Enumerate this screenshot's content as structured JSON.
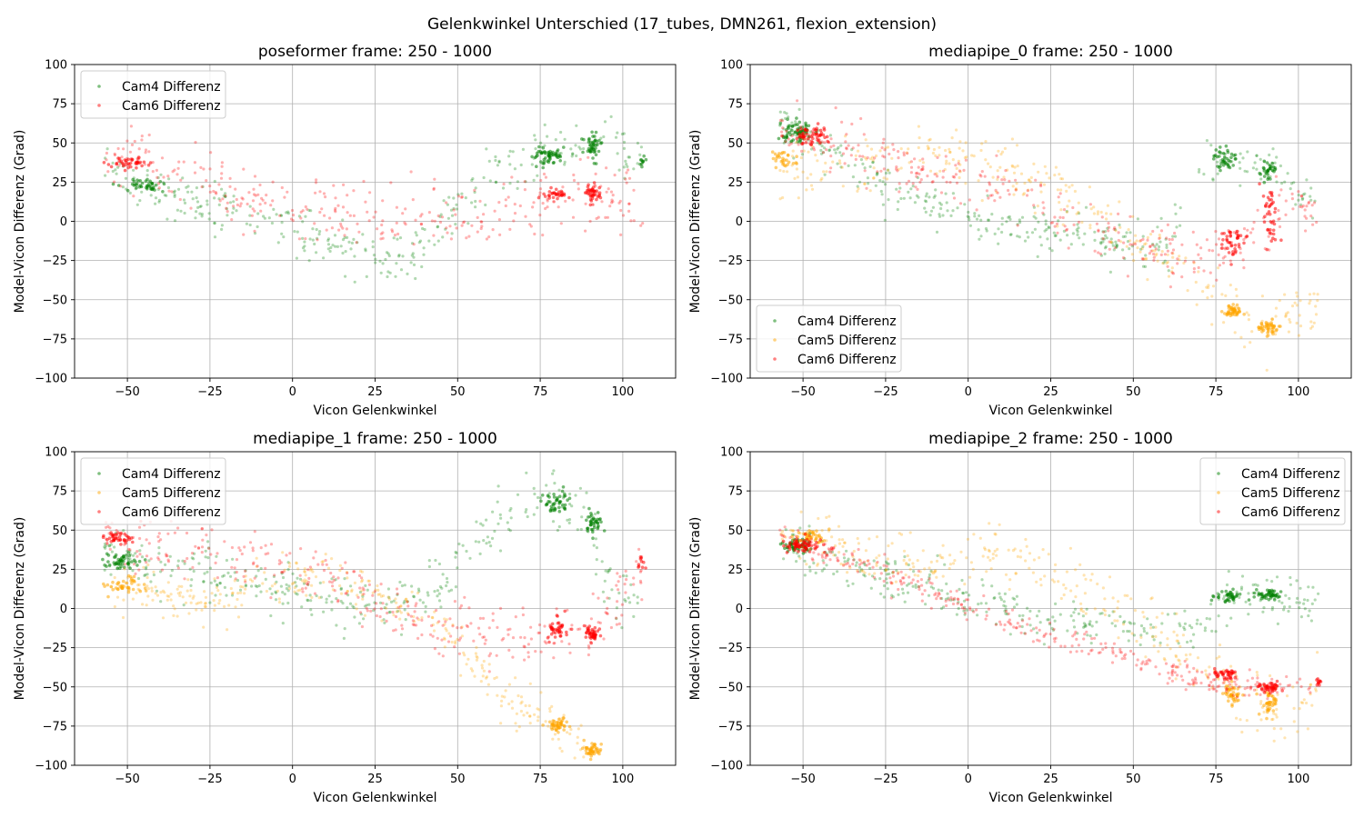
{
  "figure": {
    "suptitle": "Gelenkwinkel Unterschied (17_tubes, DMN261, flexion_extension)"
  },
  "colors": {
    "Cam4 Differenz": "#008000",
    "Cam5 Differenz": "#ffa500",
    "Cam6 Differenz": "#ff0000",
    "grid": "#b0b0b0",
    "axes": "#000000"
  },
  "chart_data": [
    {
      "type": "scatter",
      "title": "poseformer frame: 250 - 1000",
      "xlabel": "Vicon Gelenkwinkel",
      "ylabel": "Model-Vicon Differenz (Grad)",
      "xlim": [
        -66,
        116
      ],
      "ylim": [
        -100,
        100
      ],
      "xticks": [
        -50,
        -25,
        0,
        25,
        50,
        75,
        100
      ],
      "yticks": [
        -100,
        -75,
        -50,
        -25,
        0,
        25,
        50,
        75,
        100
      ],
      "grid": true,
      "legend_position": "upper left",
      "series": [
        {
          "name": "Cam4 Differenz",
          "trend": [
            [
              -57,
              35
            ],
            [
              -48,
              23
            ],
            [
              -30,
              12
            ],
            [
              -15,
              4
            ],
            [
              0,
              -5
            ],
            [
              15,
              -15
            ],
            [
              25,
              -23
            ],
            [
              35,
              -25
            ],
            [
              50,
              10
            ],
            [
              60,
              30
            ],
            [
              75,
              42
            ],
            [
              85,
              45
            ],
            [
              95,
              55
            ],
            [
              106,
              38
            ]
          ],
          "noise": 8,
          "count": 330,
          "clusters": [
            [
              77,
              42,
              4,
              5,
              55
            ],
            [
              91,
              47,
              2,
              8,
              45
            ],
            [
              -45,
              23,
              5,
              3,
              40
            ],
            [
              106,
              38,
              1,
              3,
              10
            ]
          ]
        },
        {
          "name": "Cam6 Differenz",
          "trend": [
            [
              -57,
              45
            ],
            [
              -45,
              40
            ],
            [
              -30,
              26
            ],
            [
              -15,
              15
            ],
            [
              0,
              8
            ],
            [
              15,
              5
            ],
            [
              30,
              3
            ],
            [
              45,
              0
            ],
            [
              60,
              5
            ],
            [
              75,
              12
            ],
            [
              90,
              18
            ],
            [
              106,
              10
            ]
          ],
          "noise": 10,
          "count": 330,
          "clusters": [
            [
              -50,
              37,
              5,
              3,
              40
            ],
            [
              80,
              17,
              3,
              3,
              30
            ],
            [
              91,
              18,
              2,
              4,
              40
            ]
          ]
        }
      ]
    },
    {
      "type": "scatter",
      "title": "mediapipe_0 frame: 250 - 1000",
      "xlabel": "Vicon Gelenkwinkel",
      "ylabel": "Model-Vicon Differenz (Grad)",
      "xlim": [
        -66,
        116
      ],
      "ylim": [
        -100,
        100
      ],
      "xticks": [
        -50,
        -25,
        0,
        25,
        50,
        75,
        100
      ],
      "yticks": [
        -100,
        -75,
        -50,
        -25,
        0,
        25,
        50,
        75,
        100
      ],
      "grid": true,
      "legend_position": "lower left",
      "series": [
        {
          "name": "Cam4 Differenz",
          "trend": [
            [
              -57,
              63
            ],
            [
              -45,
              50
            ],
            [
              -25,
              25
            ],
            [
              -10,
              10
            ],
            [
              0,
              2
            ],
            [
              20,
              -5
            ],
            [
              40,
              -10
            ],
            [
              60,
              -18
            ],
            [
              70,
              35
            ],
            [
              80,
              40
            ],
            [
              92,
              35
            ],
            [
              106,
              12
            ]
          ],
          "noise": 8,
          "count": 340,
          "clusters": [
            [
              -52,
              57,
              4,
              5,
              60
            ],
            [
              78,
              40,
              3,
              7,
              40
            ],
            [
              91,
              32,
              2,
              6,
              30
            ]
          ]
        },
        {
          "name": "Cam5 Differenz",
          "trend": [
            [
              -57,
              25
            ],
            [
              -45,
              35
            ],
            [
              -25,
              40
            ],
            [
              -10,
              45
            ],
            [
              0,
              40
            ],
            [
              15,
              30
            ],
            [
              30,
              15
            ],
            [
              50,
              -10
            ],
            [
              65,
              -30
            ],
            [
              78,
              -55
            ],
            [
              90,
              -68
            ],
            [
              106,
              -55
            ]
          ],
          "noise": 9,
          "count": 320,
          "clusters": [
            [
              -55,
              40,
              3,
              6,
              30
            ],
            [
              80,
              -57,
              3,
              3,
              45
            ],
            [
              91,
              -68,
              3,
              4,
              45
            ]
          ]
        },
        {
          "name": "Cam6 Differenz",
          "trend": [
            [
              -57,
              62
            ],
            [
              -45,
              52
            ],
            [
              -25,
              38
            ],
            [
              0,
              28
            ],
            [
              20,
              15
            ],
            [
              40,
              -5
            ],
            [
              55,
              -15
            ],
            [
              70,
              -25
            ],
            [
              80,
              -15
            ],
            [
              90,
              -10
            ],
            [
              95,
              12
            ],
            [
              106,
              8
            ]
          ],
          "noise": 9,
          "count": 330,
          "clusters": [
            [
              -48,
              55,
              5,
              5,
              55
            ],
            [
              80,
              -12,
              3,
              7,
              40
            ],
            [
              91,
              5,
              2,
              20,
              40
            ]
          ]
        }
      ]
    },
    {
      "type": "scatter",
      "title": "mediapipe_1 frame: 250 - 1000",
      "xlabel": "Vicon Gelenkwinkel",
      "ylabel": "Model-Vicon Differenz (Grad)",
      "xlim": [
        -66,
        116
      ],
      "ylim": [
        -100,
        100
      ],
      "xticks": [
        -50,
        -25,
        0,
        25,
        50,
        75,
        100
      ],
      "yticks": [
        -100,
        -75,
        -50,
        -25,
        0,
        25,
        50,
        75,
        100
      ],
      "grid": true,
      "legend_position": "upper left",
      "series": [
        {
          "name": "Cam4 Differenz",
          "trend": [
            [
              -57,
              38
            ],
            [
              -45,
              28
            ],
            [
              -25,
              20
            ],
            [
              0,
              12
            ],
            [
              15,
              5
            ],
            [
              30,
              0
            ],
            [
              45,
              15
            ],
            [
              55,
              40
            ],
            [
              65,
              60
            ],
            [
              78,
              72
            ],
            [
              90,
              55
            ],
            [
              95,
              15
            ],
            [
              106,
              -5
            ]
          ],
          "noise": 9,
          "count": 340,
          "clusters": [
            [
              -52,
              30,
              4,
              4,
              50
            ],
            [
              80,
              68,
              3,
              6,
              45
            ],
            [
              91,
              55,
              2,
              6,
              40
            ]
          ]
        },
        {
          "name": "Cam5 Differenz",
          "trend": [
            [
              -57,
              15
            ],
            [
              -45,
              10
            ],
            [
              -25,
              5
            ],
            [
              0,
              20
            ],
            [
              15,
              20
            ],
            [
              30,
              5
            ],
            [
              45,
              -10
            ],
            [
              55,
              -35
            ],
            [
              65,
              -55
            ],
            [
              78,
              -72
            ],
            [
              90,
              -90
            ]
          ],
          "noise": 8,
          "count": 320,
          "clusters": [
            [
              -50,
              14,
              5,
              4,
              40
            ],
            [
              80,
              -74,
              3,
              4,
              45
            ],
            [
              91,
              -90,
              2,
              4,
              45
            ]
          ]
        },
        {
          "name": "Cam6 Differenz",
          "trend": [
            [
              -57,
              48
            ],
            [
              -45,
              40
            ],
            [
              -25,
              35
            ],
            [
              0,
              28
            ],
            [
              15,
              15
            ],
            [
              30,
              0
            ],
            [
              45,
              -10
            ],
            [
              60,
              -15
            ],
            [
              75,
              -18
            ],
            [
              90,
              -18
            ],
            [
              95,
              0
            ],
            [
              106,
              25
            ]
          ],
          "noise": 9,
          "count": 330,
          "clusters": [
            [
              -52,
              45,
              3,
              3,
              40
            ],
            [
              80,
              -12,
              3,
              6,
              40
            ],
            [
              91,
              -16,
              2,
              4,
              45
            ],
            [
              106,
              27,
              1,
              4,
              10
            ]
          ]
        }
      ]
    },
    {
      "type": "scatter",
      "title": "mediapipe_2 frame: 250 - 1000",
      "xlabel": "Vicon Gelenkwinkel",
      "ylabel": "Model-Vicon Differenz (Grad)",
      "xlim": [
        -66,
        116
      ],
      "ylim": [
        -100,
        100
      ],
      "xticks": [
        -50,
        -25,
        0,
        25,
        50,
        75,
        100
      ],
      "yticks": [
        -100,
        -75,
        -50,
        -25,
        0,
        25,
        50,
        75,
        100
      ],
      "grid": true,
      "legend_position": "upper right",
      "series": [
        {
          "name": "Cam4 Differenz",
          "trend": [
            [
              -57,
              42
            ],
            [
              -45,
              35
            ],
            [
              -25,
              22
            ],
            [
              0,
              5
            ],
            [
              20,
              -5
            ],
            [
              40,
              -10
            ],
            [
              55,
              -15
            ],
            [
              65,
              -12
            ],
            [
              75,
              -5
            ],
            [
              80,
              8
            ],
            [
              92,
              8
            ],
            [
              106,
              0
            ]
          ],
          "noise": 7,
          "count": 330,
          "clusters": [
            [
              -52,
              40,
              4,
              4,
              50
            ],
            [
              79,
              8,
              3,
              3,
              40
            ],
            [
              91,
              9,
              3,
              3,
              45
            ]
          ]
        },
        {
          "name": "Cam5 Differenz",
          "trend": [
            [
              -57,
              45
            ],
            [
              -45,
              45
            ],
            [
              -25,
              30
            ],
            [
              0,
              30
            ],
            [
              15,
              35
            ],
            [
              30,
              15
            ],
            [
              45,
              0
            ],
            [
              60,
              -20
            ],
            [
              75,
              -40
            ],
            [
              80,
              -55
            ],
            [
              90,
              -60
            ],
            [
              95,
              -78
            ],
            [
              106,
              -50
            ]
          ],
          "noise": 9,
          "count": 320,
          "clusters": [
            [
              -48,
              45,
              4,
              4,
              40
            ],
            [
              80,
              -55,
              3,
              6,
              40
            ],
            [
              91,
              -60,
              3,
              8,
              40
            ]
          ]
        },
        {
          "name": "Cam6 Differenz",
          "trend": [
            [
              -57,
              47
            ],
            [
              -45,
              38
            ],
            [
              -25,
              22
            ],
            [
              0,
              0
            ],
            [
              20,
              -15
            ],
            [
              40,
              -25
            ],
            [
              60,
              -40
            ],
            [
              75,
              -48
            ],
            [
              90,
              -50
            ],
            [
              106,
              -48
            ]
          ],
          "noise": 4,
          "count": 330,
          "clusters": [
            [
              -50,
              40,
              5,
              4,
              60
            ],
            [
              78,
              -42,
              3,
              4,
              40
            ],
            [
              91,
              -50,
              3,
              3,
              45
            ],
            [
              106,
              -48,
              1,
              2,
              10
            ]
          ]
        }
      ]
    }
  ]
}
